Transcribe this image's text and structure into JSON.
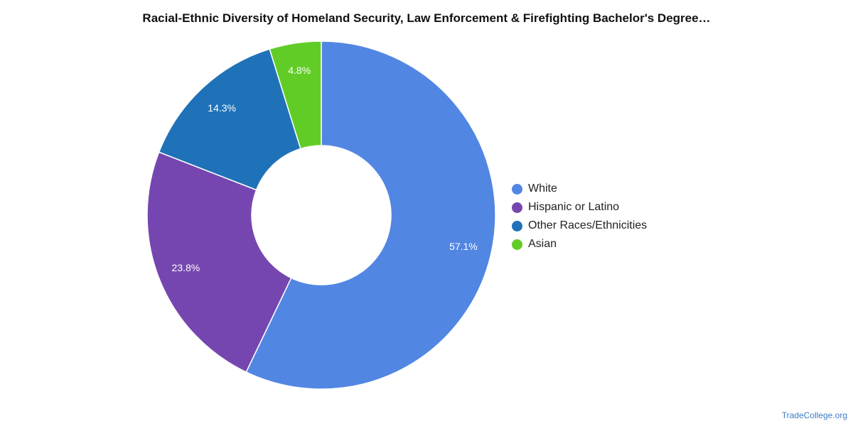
{
  "chart_data": {
    "type": "pie",
    "style": "donut",
    "title": "Racial-Ethnic Diversity of Homeland Security, Law Enforcement & Firefighting Bachelor's Degree…",
    "categories": [
      "White",
      "Hispanic or Latino",
      "Other Races/Ethnicities",
      "Asian"
    ],
    "values": [
      57.1,
      23.8,
      14.3,
      4.8
    ],
    "value_labels": [
      "57.1%",
      "23.8%",
      "14.3%",
      "4.8%"
    ],
    "colors": [
      "#5286e3",
      "#7646b0",
      "#1f72b8",
      "#62cc27"
    ],
    "legend_position": "right"
  },
  "footer": {
    "source": "TradeCollege.org"
  }
}
